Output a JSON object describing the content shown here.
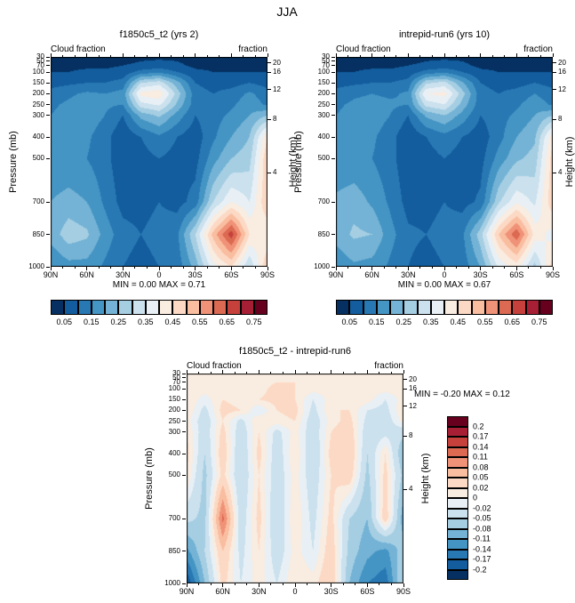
{
  "title": "JJA",
  "palette16": [
    "#053061",
    "#135d9e",
    "#2878b4",
    "#4495c4",
    "#74b3d5",
    "#a5cee3",
    "#cbe1ee",
    "#e8f0f5",
    "#f9ece1",
    "#fcd9c4",
    "#f9bda0",
    "#f09277",
    "#dc6952",
    "#c6413c",
    "#a71f35",
    "#67001f"
  ],
  "axis": {
    "pressure_label": "Pressure (mb)",
    "height_label": "Height (km)",
    "pressure_ticks": [
      30,
      50,
      70,
      100,
      150,
      200,
      250,
      300,
      400,
      500,
      700,
      850,
      1000
    ],
    "height_ticks_km": [
      20,
      16,
      12,
      8,
      4
    ],
    "lat_ticks": [
      "90N",
      "60N",
      "30N",
      "0",
      "30S",
      "60S",
      "90S"
    ],
    "field_label_left": "Cloud fraction",
    "field_label_right": "fraction"
  },
  "chart_data": [
    {
      "type": "heatmap",
      "title": "f1850c5_t2 (yrs 2)",
      "minmax": "MIN =  0.00  MAX =  0.71",
      "min": 0.0,
      "max": 0.71,
      "colorbar_orientation": "horizontal",
      "colorbar_ticks": [
        "0.05",
        "0.15",
        "0.25",
        "0.35",
        "0.45",
        "0.55",
        "0.65",
        "0.75"
      ],
      "boundaries": [
        0.05,
        0.1,
        0.15,
        0.2,
        0.25,
        0.3,
        0.35,
        0.4,
        0.45,
        0.5,
        0.55,
        0.6,
        0.65,
        0.7,
        0.75
      ],
      "levels_mb": [
        30,
        70,
        100,
        150,
        200,
        250,
        300,
        400,
        500,
        700,
        850,
        1000
      ],
      "lats_deg": [
        90,
        75,
        60,
        45,
        30,
        15,
        0,
        -15,
        -30,
        -45,
        -60,
        -75,
        -90
      ],
      "values": [
        [
          0.03,
          0.03,
          0.03,
          0.03,
          0.03,
          0.04,
          0.04,
          0.04,
          0.03,
          0.03,
          0.03,
          0.03,
          0.03
        ],
        [
          0.04,
          0.04,
          0.04,
          0.04,
          0.05,
          0.06,
          0.07,
          0.06,
          0.04,
          0.04,
          0.04,
          0.04,
          0.04
        ],
        [
          0.05,
          0.05,
          0.06,
          0.06,
          0.07,
          0.12,
          0.14,
          0.1,
          0.06,
          0.05,
          0.05,
          0.05,
          0.05
        ],
        [
          0.08,
          0.09,
          0.1,
          0.1,
          0.12,
          0.3,
          0.33,
          0.22,
          0.1,
          0.08,
          0.08,
          0.1,
          0.08
        ],
        [
          0.12,
          0.14,
          0.16,
          0.15,
          0.17,
          0.42,
          0.44,
          0.28,
          0.12,
          0.1,
          0.12,
          0.16,
          0.12
        ],
        [
          0.14,
          0.16,
          0.18,
          0.16,
          0.15,
          0.33,
          0.36,
          0.24,
          0.12,
          0.12,
          0.14,
          0.18,
          0.14
        ],
        [
          0.15,
          0.17,
          0.18,
          0.15,
          0.1,
          0.22,
          0.26,
          0.18,
          0.1,
          0.13,
          0.16,
          0.2,
          0.25
        ],
        [
          0.15,
          0.16,
          0.16,
          0.12,
          0.06,
          0.1,
          0.14,
          0.1,
          0.07,
          0.14,
          0.2,
          0.25,
          0.45
        ],
        [
          0.16,
          0.16,
          0.15,
          0.12,
          0.06,
          0.08,
          0.1,
          0.08,
          0.08,
          0.18,
          0.25,
          0.28,
          0.5
        ],
        [
          0.2,
          0.22,
          0.2,
          0.14,
          0.08,
          0.08,
          0.1,
          0.08,
          0.12,
          0.3,
          0.4,
          0.35,
          0.5
        ],
        [
          0.22,
          0.28,
          0.26,
          0.18,
          0.12,
          0.1,
          0.12,
          0.14,
          0.3,
          0.52,
          0.68,
          0.45,
          0.4
        ],
        [
          0.15,
          0.18,
          0.18,
          0.14,
          0.1,
          0.08,
          0.1,
          0.12,
          0.22,
          0.38,
          0.45,
          0.3,
          0.5
        ]
      ]
    },
    {
      "type": "heatmap",
      "title": "intrepid-run6 (yrs 10)",
      "minmax": "MIN =  0.00  MAX =  0.67",
      "min": 0.0,
      "max": 0.67,
      "colorbar_orientation": "horizontal",
      "colorbar_ticks": [
        "0.05",
        "0.15",
        "0.25",
        "0.35",
        "0.45",
        "0.55",
        "0.65",
        "0.75"
      ],
      "boundaries": [
        0.05,
        0.1,
        0.15,
        0.2,
        0.25,
        0.3,
        0.35,
        0.4,
        0.45,
        0.5,
        0.55,
        0.6,
        0.65,
        0.7,
        0.75
      ],
      "levels_mb": [
        30,
        70,
        100,
        150,
        200,
        250,
        300,
        400,
        500,
        700,
        850,
        1000
      ],
      "lats_deg": [
        90,
        75,
        60,
        45,
        30,
        15,
        0,
        -15,
        -30,
        -45,
        -60,
        -75,
        -90
      ],
      "values": [
        [
          0.03,
          0.03,
          0.03,
          0.03,
          0.03,
          0.04,
          0.04,
          0.04,
          0.03,
          0.03,
          0.03,
          0.03,
          0.03
        ],
        [
          0.04,
          0.04,
          0.04,
          0.04,
          0.05,
          0.06,
          0.07,
          0.06,
          0.04,
          0.04,
          0.04,
          0.04,
          0.04
        ],
        [
          0.05,
          0.05,
          0.06,
          0.06,
          0.07,
          0.12,
          0.14,
          0.1,
          0.06,
          0.05,
          0.05,
          0.05,
          0.05
        ],
        [
          0.08,
          0.09,
          0.1,
          0.1,
          0.12,
          0.29,
          0.32,
          0.21,
          0.1,
          0.08,
          0.08,
          0.1,
          0.08
        ],
        [
          0.12,
          0.14,
          0.15,
          0.14,
          0.16,
          0.4,
          0.42,
          0.27,
          0.12,
          0.1,
          0.12,
          0.15,
          0.12
        ],
        [
          0.14,
          0.16,
          0.17,
          0.16,
          0.15,
          0.32,
          0.35,
          0.23,
          0.12,
          0.12,
          0.14,
          0.18,
          0.14
        ],
        [
          0.15,
          0.17,
          0.18,
          0.15,
          0.1,
          0.21,
          0.25,
          0.18,
          0.1,
          0.13,
          0.16,
          0.2,
          0.25
        ],
        [
          0.15,
          0.16,
          0.16,
          0.12,
          0.06,
          0.1,
          0.13,
          0.1,
          0.07,
          0.13,
          0.2,
          0.24,
          0.44
        ],
        [
          0.16,
          0.16,
          0.15,
          0.12,
          0.06,
          0.08,
          0.1,
          0.08,
          0.08,
          0.17,
          0.24,
          0.27,
          0.48
        ],
        [
          0.21,
          0.23,
          0.19,
          0.14,
          0.08,
          0.08,
          0.1,
          0.08,
          0.11,
          0.29,
          0.39,
          0.34,
          0.49
        ],
        [
          0.22,
          0.26,
          0.25,
          0.17,
          0.11,
          0.1,
          0.12,
          0.14,
          0.28,
          0.5,
          0.64,
          0.43,
          0.38
        ],
        [
          0.16,
          0.19,
          0.18,
          0.14,
          0.1,
          0.08,
          0.1,
          0.12,
          0.2,
          0.36,
          0.42,
          0.28,
          0.48
        ]
      ]
    },
    {
      "type": "heatmap",
      "title": "f1850c5_t2 - intrepid-run6",
      "minmax": "MIN = -0.20  MAX =  0.12",
      "min": -0.2,
      "max": 0.12,
      "colorbar_orientation": "vertical",
      "colorbar_ticks": [
        "0.2",
        "0.17",
        "0.14",
        "0.11",
        "0.08",
        "0.05",
        "0.02",
        "0",
        "-0.02",
        "-0.05",
        "-0.08",
        "-0.11",
        "-0.14",
        "-0.17",
        "-0.2"
      ],
      "boundaries": [
        -0.2,
        -0.17,
        -0.14,
        -0.11,
        -0.08,
        -0.05,
        -0.02,
        0,
        0.02,
        0.05,
        0.08,
        0.11,
        0.14,
        0.17,
        0.2
      ],
      "levels_mb": [
        30,
        70,
        100,
        150,
        200,
        250,
        300,
        400,
        500,
        700,
        850,
        1000
      ],
      "lats_deg": [
        90,
        75,
        60,
        45,
        30,
        15,
        0,
        -15,
        -30,
        -45,
        -60,
        -75,
        -90
      ],
      "values": [
        [
          0.01,
          0.01,
          0.01,
          0.01,
          0.01,
          0.01,
          0.01,
          0.01,
          0.01,
          0.01,
          0.01,
          0.01,
          0.01
        ],
        [
          0.01,
          0.01,
          0.01,
          0.01,
          0.01,
          0.02,
          0.02,
          0.01,
          0.01,
          0.01,
          0.01,
          0.01,
          0.01
        ],
        [
          0.01,
          0.01,
          0.02,
          0.01,
          0.01,
          0.03,
          0.02,
          0.01,
          0.01,
          0.01,
          0.01,
          0.01,
          0.01
        ],
        [
          0.02,
          -0.01,
          0.02,
          0.01,
          0.02,
          0.03,
          0.02,
          -0.02,
          0.01,
          0.02,
          0.01,
          -0.02,
          0.01
        ],
        [
          0.02,
          -0.03,
          0.03,
          0.02,
          -0.02,
          0.02,
          0.03,
          -0.03,
          0.02,
          0.02,
          -0.02,
          -0.03,
          0.02
        ],
        [
          0.01,
          -0.04,
          0.02,
          -0.03,
          0.02,
          0.01,
          0.02,
          -0.04,
          0.01,
          0.03,
          -0.03,
          -0.04,
          0.01
        ],
        [
          0.02,
          -0.04,
          0.03,
          -0.04,
          0.02,
          -0.03,
          0.01,
          -0.04,
          0.02,
          0.04,
          -0.04,
          -0.03,
          -0.04
        ],
        [
          0.03,
          -0.05,
          0.04,
          -0.05,
          0.03,
          -0.04,
          0.02,
          -0.05,
          0.03,
          0.05,
          -0.05,
          0.02,
          -0.08
        ],
        [
          0.02,
          -0.06,
          0.03,
          -0.05,
          0.02,
          -0.04,
          0.01,
          -0.04,
          0.02,
          0.04,
          -0.06,
          0.03,
          -0.06
        ],
        [
          -0.04,
          -0.06,
          0.12,
          -0.04,
          0.03,
          -0.05,
          0.02,
          -0.03,
          0.03,
          -0.05,
          -0.08,
          0.04,
          -0.1
        ],
        [
          -0.12,
          -0.05,
          0.05,
          -0.03,
          0.02,
          -0.04,
          0.01,
          -0.02,
          0.04,
          -0.06,
          -0.1,
          -0.12,
          -0.06
        ],
        [
          -0.2,
          -0.08,
          0.03,
          -0.02,
          0.01,
          -0.02,
          0.02,
          0.01,
          0.05,
          -0.08,
          -0.14,
          -0.16,
          -0.04
        ]
      ]
    }
  ]
}
